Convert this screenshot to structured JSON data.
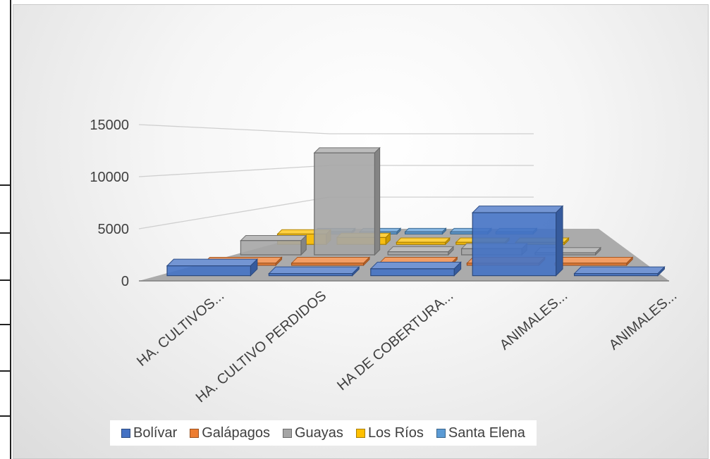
{
  "chart_data": {
    "type": "bar",
    "variant": "3d-clustered-column",
    "title": "",
    "xlabel": "",
    "ylabel": "",
    "categories": [
      "HA. CULTIVOS...",
      "HA. CULTIVO PERDIDOS",
      "HA DE COBERTURA...",
      "ANIMALES...",
      "ANIMALES..."
    ],
    "y_ticks": [
      "0",
      "5000",
      "10000",
      "15000"
    ],
    "ylim": [
      0,
      15000
    ],
    "grid": true,
    "legend_position": "bottom",
    "series": [
      {
        "name": "Bolívar",
        "color": "#4472C4",
        "values": [
          1000,
          100,
          700,
          6400,
          200
        ]
      },
      {
        "name": "Galápagos",
        "color": "#ED7D31",
        "values": [
          0,
          0,
          0,
          0,
          0
        ]
      },
      {
        "name": "Guayas",
        "color": "#A5A5A5",
        "values": [
          1400,
          10000,
          300,
          600,
          0
        ]
      },
      {
        "name": "Los Ríos",
        "color": "#FFC000",
        "values": [
          1200,
          800,
          100,
          200,
          0
        ]
      },
      {
        "name": "Santa Elena",
        "color": "#5B9BD5",
        "values": [
          0,
          0,
          0,
          0,
          0
        ]
      }
    ]
  }
}
